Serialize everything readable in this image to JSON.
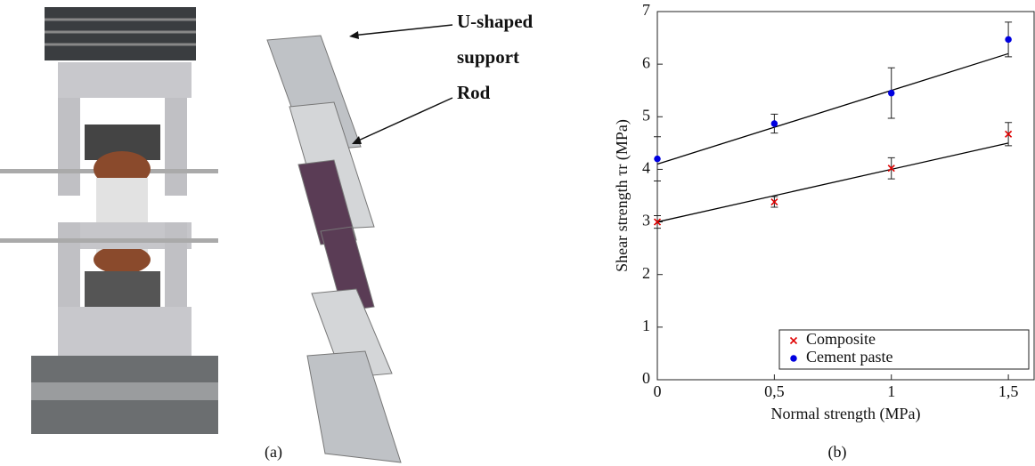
{
  "panel_labels": [
    "(a)",
    "(b)"
  ],
  "annotations": [
    "U-shaped",
    "support",
    "Rod"
  ],
  "chart_data": {
    "type": "scatter",
    "x_label": "Normal strength (MPa)",
    "y_label": "Shear strength τr (MPa)",
    "x": [
      0,
      0.5,
      1,
      1.5
    ],
    "series": [
      {
        "name": "Composite",
        "color": "#e00000",
        "marker": "x",
        "values": [
          3.0,
          3.38,
          4.02,
          4.67
        ],
        "errors": [
          0.12,
          0.1,
          0.2,
          0.22
        ]
      },
      {
        "name": "Cement paste",
        "color": "#0000e0",
        "marker": "o",
        "values": [
          4.2,
          4.87,
          5.45,
          6.47
        ],
        "errors": [
          0.42,
          0.18,
          0.48,
          0.33
        ]
      }
    ],
    "fit_lines": [
      {
        "color": "#000000",
        "x": [
          0,
          1.5
        ],
        "values": [
          3.0,
          4.5
        ]
      },
      {
        "color": "#000000",
        "x": [
          0,
          1.5
        ],
        "values": [
          4.1,
          6.2
        ]
      }
    ],
    "xlim": [
      0,
      1.61
    ],
    "ylim": [
      0,
      7
    ],
    "xticks": [
      0,
      {
        "value": 0.5,
        "label": "0,5"
      },
      1,
      {
        "value": 1.5,
        "label": "1,5"
      }
    ],
    "yticks": [
      0,
      1,
      2,
      3,
      4,
      5,
      6,
      7
    ],
    "legend": "lower right"
  }
}
